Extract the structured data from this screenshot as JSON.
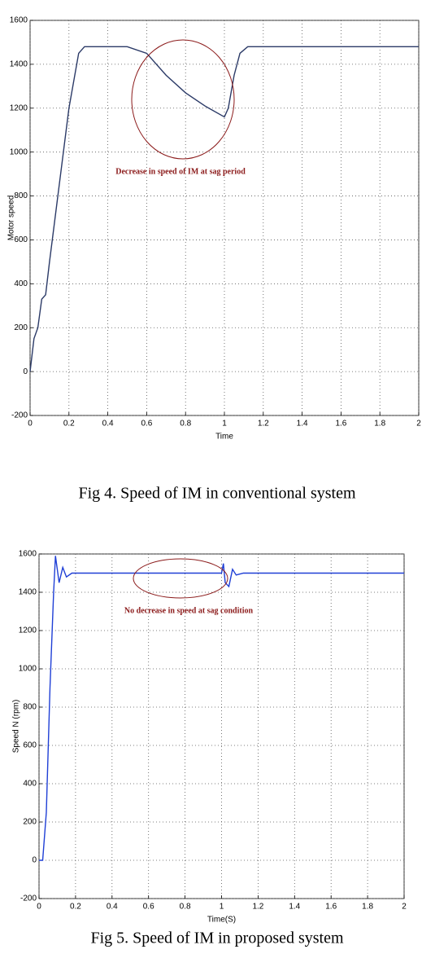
{
  "chart_data": [
    {
      "type": "line",
      "xlabel": "Time",
      "ylabel": "Motor speed",
      "caption": "Fig 4. Speed of IM in conventional system",
      "annotation": "Decrease in speed of IM at sag period",
      "xlim": [
        0,
        2
      ],
      "ylim": [
        -200,
        1600
      ],
      "xticks": [
        0,
        0.2,
        0.4,
        0.6,
        0.8,
        1,
        1.2,
        1.4,
        1.6,
        1.8,
        2
      ],
      "yticks": [
        -200,
        0,
        200,
        400,
        600,
        800,
        1000,
        1200,
        1400,
        1600
      ],
      "grid": true,
      "x": [
        0,
        0.02,
        0.04,
        0.06,
        0.08,
        0.1,
        0.15,
        0.2,
        0.25,
        0.28,
        0.5,
        0.6,
        0.7,
        0.8,
        0.9,
        1.0,
        1.02,
        1.05,
        1.08,
        1.12,
        2
      ],
      "series": [
        {
          "color": "#2b3a67",
          "values": [
            0,
            150,
            200,
            330,
            350,
            500,
            850,
            1200,
            1450,
            1480,
            1480,
            1450,
            1350,
            1270,
            1210,
            1160,
            1200,
            1350,
            1450,
            1480,
            1480
          ]
        }
      ]
    },
    {
      "type": "line",
      "xlabel": "Time(S)",
      "ylabel": "Speed N (rpm)",
      "caption": "Fig 5. Speed of IM in proposed system",
      "annotation": "No decrease in speed at sag    condition",
      "xlim": [
        0,
        2
      ],
      "ylim": [
        -200,
        1600
      ],
      "xticks": [
        0,
        0.2,
        0.4,
        0.6,
        0.8,
        1,
        1.2,
        1.4,
        1.6,
        1.8,
        2
      ],
      "yticks": [
        -200,
        0,
        200,
        400,
        600,
        800,
        1000,
        1200,
        1400,
        1600
      ],
      "grid": true,
      "x": [
        0,
        0.02,
        0.04,
        0.06,
        0.08,
        0.09,
        0.1,
        0.11,
        0.13,
        0.15,
        0.18,
        1.0,
        1.01,
        1.02,
        1.04,
        1.06,
        1.08,
        1.12,
        2
      ],
      "series": [
        {
          "color": "#1f3fd6",
          "values": [
            0,
            0,
            250,
            900,
            1400,
            1590,
            1520,
            1450,
            1530,
            1480,
            1500,
            1500,
            1550,
            1450,
            1430,
            1520,
            1490,
            1500,
            1500
          ]
        }
      ]
    }
  ]
}
